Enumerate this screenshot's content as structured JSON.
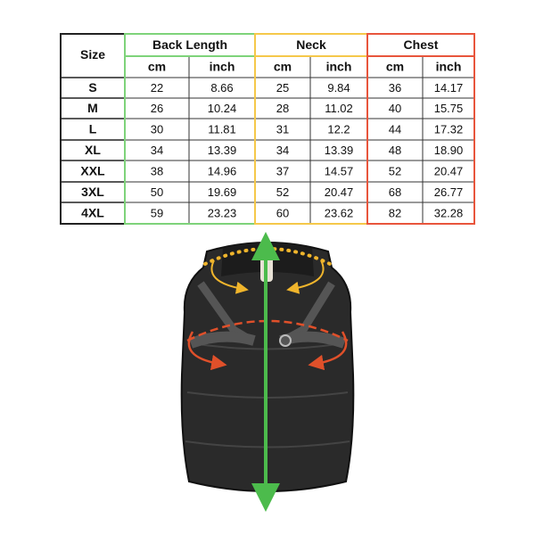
{
  "table": {
    "size_header": "Size",
    "groups": [
      {
        "name": "Back Length",
        "columns": [
          "cm",
          "inch"
        ]
      },
      {
        "name": "Neck",
        "columns": [
          "cm",
          "inch"
        ]
      },
      {
        "name": "Chest",
        "columns": [
          "cm",
          "inch"
        ]
      }
    ],
    "rows": [
      [
        "S",
        "22",
        "8.66",
        "25",
        "9.84",
        "36",
        "14.17"
      ],
      [
        "M",
        "26",
        "10.24",
        "28",
        "11.02",
        "40",
        "15.75"
      ],
      [
        "L",
        "30",
        "11.81",
        "31",
        "12.2",
        "44",
        "17.32"
      ],
      [
        "XL",
        "34",
        "13.39",
        "34",
        "13.39",
        "48",
        "18.90"
      ],
      [
        "XXL",
        "38",
        "14.96",
        "37",
        "14.57",
        "52",
        "20.47"
      ],
      [
        "3XL",
        "50",
        "19.69",
        "52",
        "20.47",
        "68",
        "26.77"
      ],
      [
        "4XL",
        "59",
        "23.23",
        "60",
        "23.62",
        "82",
        "32.28"
      ]
    ]
  }
}
